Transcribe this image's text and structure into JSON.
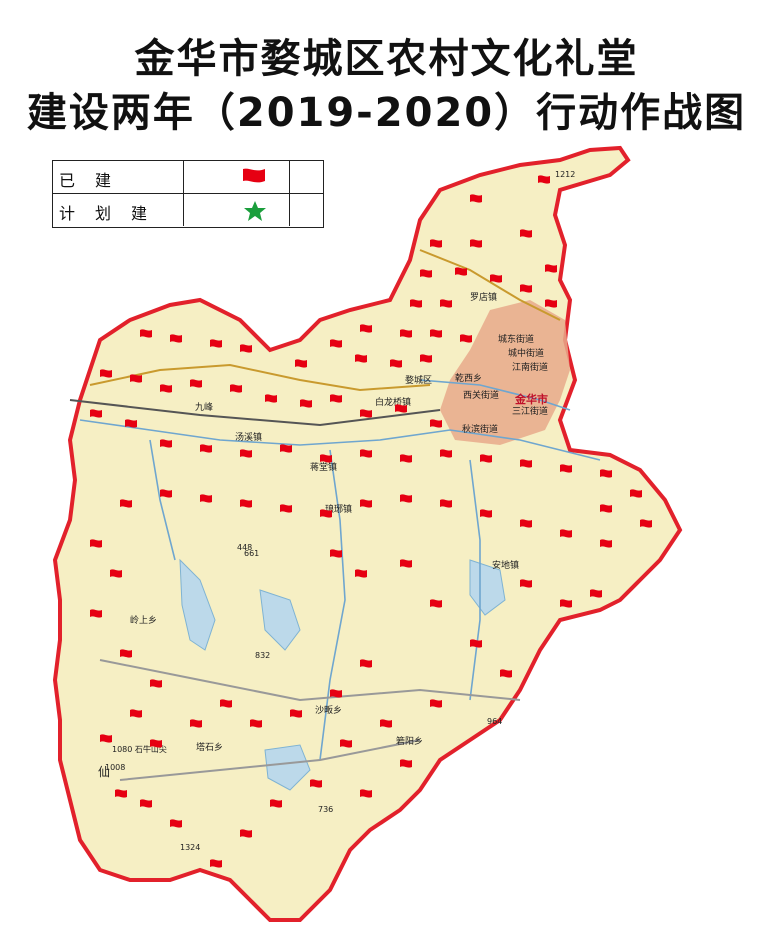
{
  "title": {
    "line1": "金华市婺城区农村文化礼堂",
    "line2": "建设两年（2019-2020）行动作战图"
  },
  "legend": {
    "built": {
      "label": "已建",
      "icon": "red-flag-icon",
      "color": "#e60012"
    },
    "planned": {
      "label": "计划建",
      "icon": "green-star-icon",
      "color": "#1a9e3c"
    }
  },
  "map": {
    "fill_color": "#f6efc4",
    "border_color": "#e2212b",
    "urban_color": "#e7a98b",
    "water_color": "#bcd9ea",
    "places": {
      "wucheng_district": "婺城区",
      "jinhua_city": "金华市",
      "chengdong": "城东街道",
      "chengzhong": "城中街道",
      "jiangnan": "江南街道",
      "xiguan": "西关街道",
      "sanjiang": "三江街道",
      "qiubin": "秋滨街道",
      "ganxi": "乾西乡",
      "bailong": "白龙桥镇",
      "tangxi": "汤溪镇",
      "luodian": "罗店镇",
      "anmin": "安地镇",
      "lingshang": "岭上乡",
      "tashi": "塔石乡",
      "shafan": "沙畈乡",
      "jianfeng": "箬阳乡",
      "qiantang": "琅琊镇",
      "xiantang": "仙",
      "jiulong": "九峰",
      "mengyuan": "蒋堂镇",
      "lanxi_top": "1212",
      "elev_964": "964",
      "elev_1080": "1080 石牛山尖",
      "elev_1324": "1324",
      "elev_1008": "1008",
      "elev_832": "832",
      "elev_736": "736",
      "elev_661": "661",
      "elev_448": "448"
    }
  }
}
